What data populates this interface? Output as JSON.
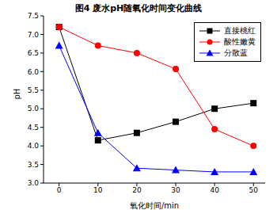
{
  "chart_data": {
    "type": "line",
    "title": "图4 废水pH随氧化时间变化曲线",
    "x_label": "氧化时间/min",
    "y_label": "pH",
    "x": [
      0,
      10,
      20,
      30,
      40,
      50
    ],
    "series": [
      {
        "name": "直接桃红",
        "color": "#000000",
        "marker": "square",
        "values": [
          7.2,
          4.15,
          4.35,
          4.65,
          5.0,
          5.15
        ]
      },
      {
        "name": "酸性嫩黄",
        "color": "#ff0000",
        "marker": "circle",
        "values": [
          7.2,
          6.7,
          6.5,
          6.07,
          4.45,
          4.0
        ]
      },
      {
        "name": "分散蓝",
        "color": "#0000ff",
        "marker": "triangle",
        "values": [
          6.7,
          4.35,
          3.4,
          3.35,
          3.3,
          3.3
        ]
      }
    ],
    "xlim": [
      -4,
      53
    ],
    "xticks": [
      0,
      10,
      20,
      30,
      40,
      50
    ],
    "ylim": [
      3.0,
      7.5
    ],
    "yticks": [
      {
        "value": 3,
        "label": "3.0"
      },
      {
        "value": 3.5,
        "label": "3.5"
      },
      {
        "value": 4,
        "label": "4.0"
      },
      {
        "value": 4.5,
        "label": "4.5"
      },
      {
        "value": 5,
        "label": "5.0"
      },
      {
        "value": 5.5,
        "label": "5.5"
      },
      {
        "value": 6,
        "label": "6.0"
      },
      {
        "value": 6.5,
        "label": "6.5"
      },
      {
        "value": 7,
        "label": "7.0"
      },
      {
        "value": 7.5,
        "label": "7.5"
      }
    ],
    "legend": "upper right",
    "grid": false
  }
}
